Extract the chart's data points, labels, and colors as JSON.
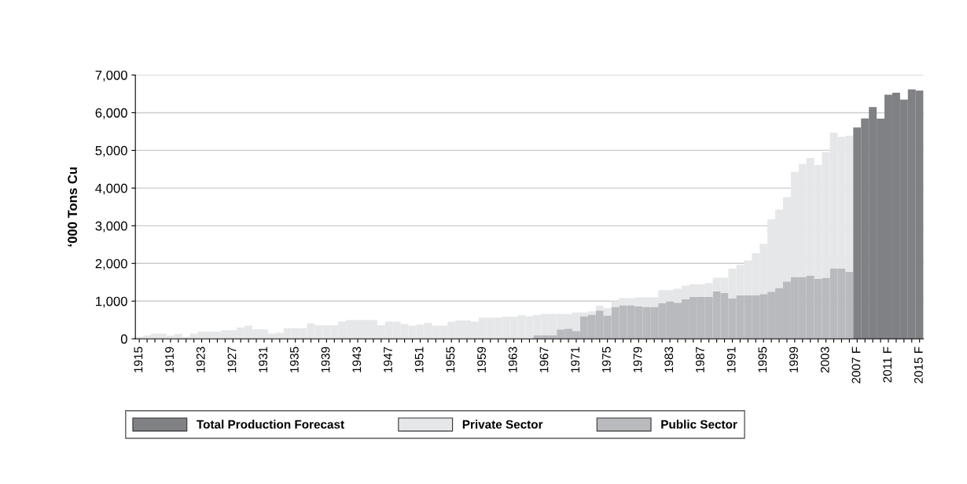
{
  "chart_data": {
    "type": "bar",
    "stacked": true,
    "ylabel": "‘000 Tons Cu",
    "categories": [
      "1915",
      null,
      null,
      null,
      "1919",
      null,
      null,
      null,
      "1923",
      null,
      null,
      null,
      "1927",
      null,
      null,
      null,
      "1931",
      null,
      null,
      null,
      "1935",
      null,
      null,
      null,
      "1939",
      null,
      null,
      null,
      "1943",
      null,
      null,
      null,
      "1947",
      null,
      null,
      null,
      "1951",
      null,
      null,
      null,
      "1955",
      null,
      null,
      null,
      "1959",
      null,
      null,
      null,
      "1963",
      null,
      null,
      null,
      "1967",
      null,
      null,
      null,
      "1971",
      null,
      null,
      null,
      "1975",
      null,
      null,
      null,
      "1979",
      null,
      null,
      null,
      "1983",
      null,
      null,
      null,
      "1987",
      null,
      null,
      null,
      "1991",
      null,
      null,
      null,
      "1995",
      null,
      null,
      null,
      "1999",
      null,
      null,
      null,
      "2003",
      null,
      null,
      null,
      "2007 F",
      null,
      null,
      null,
      "2011 F",
      null,
      null,
      null,
      "2015 F"
    ],
    "series": [
      {
        "name": "Public Sector",
        "color": "#b9babe",
        "values": [
          null,
          null,
          null,
          null,
          null,
          null,
          null,
          null,
          null,
          null,
          null,
          null,
          null,
          null,
          null,
          null,
          null,
          null,
          null,
          null,
          null,
          null,
          null,
          null,
          null,
          null,
          null,
          null,
          null,
          null,
          null,
          null,
          null,
          null,
          null,
          null,
          null,
          null,
          null,
          null,
          null,
          null,
          null,
          null,
          null,
          null,
          null,
          null,
          null,
          null,
          null,
          100,
          100,
          100,
          250,
          270,
          210,
          600,
          640,
          750,
          620,
          840,
          890,
          890,
          860,
          850,
          850,
          950,
          990,
          960,
          1050,
          1110,
          1110,
          1110,
          1260,
          1220,
          1080,
          1150,
          1150,
          1150,
          1190,
          1250,
          1350,
          1520,
          1640,
          1640,
          1670,
          1590,
          1620,
          1870,
          1870,
          1780,
          null,
          null,
          null,
          null,
          null,
          null,
          null,
          null,
          null
        ]
      },
      {
        "name": "Private Sector",
        "color": "#e6e7e9",
        "values": [
          50,
          90,
          140,
          140,
          90,
          130,
          50,
          140,
          190,
          190,
          190,
          230,
          230,
          300,
          350,
          250,
          250,
          140,
          160,
          280,
          280,
          280,
          410,
          360,
          360,
          360,
          460,
          500,
          500,
          500,
          500,
          360,
          460,
          450,
          390,
          350,
          380,
          420,
          350,
          350,
          450,
          490,
          490,
          450,
          560,
          560,
          560,
          590,
          590,
          630,
          600,
          530,
          560,
          560,
          410,
          390,
          490,
          100,
          90,
          130,
          190,
          160,
          190,
          190,
          240,
          250,
          250,
          340,
          300,
          370,
          360,
          340,
          340,
          370,
          360,
          400,
          780,
          810,
          930,
          1120,
          1330,
          1920,
          2080,
          2240,
          2790,
          3000,
          3130,
          3020,
          3330,
          3600,
          3490,
          3610,
          null,
          null,
          null,
          null,
          null,
          null,
          null,
          null,
          null
        ]
      },
      {
        "name": "Total Production Forecast",
        "color": "#808185",
        "values": [
          null,
          null,
          null,
          null,
          null,
          null,
          null,
          null,
          null,
          null,
          null,
          null,
          null,
          null,
          null,
          null,
          null,
          null,
          null,
          null,
          null,
          null,
          null,
          null,
          null,
          null,
          null,
          null,
          null,
          null,
          null,
          null,
          null,
          null,
          null,
          null,
          null,
          null,
          null,
          null,
          null,
          null,
          null,
          null,
          null,
          null,
          null,
          null,
          null,
          null,
          null,
          null,
          null,
          null,
          null,
          null,
          null,
          null,
          null,
          null,
          null,
          null,
          null,
          null,
          null,
          null,
          null,
          null,
          null,
          null,
          null,
          null,
          null,
          null,
          null,
          null,
          null,
          null,
          null,
          null,
          null,
          null,
          null,
          null,
          null,
          null,
          null,
          null,
          null,
          null,
          null,
          null,
          5610,
          5850,
          6150,
          5840,
          6480,
          6530,
          6350,
          6620,
          6590
        ]
      }
    ],
    "ylim": [
      0,
      7000
    ],
    "yticks": [
      0,
      {
        "value": 1000,
        "label": "1,000"
      },
      {
        "value": 2000,
        "label": "2,000"
      },
      {
        "value": 3000,
        "label": "3,000"
      },
      {
        "value": 4000,
        "label": "4,000"
      },
      {
        "value": 5000,
        "label": "5,000"
      },
      {
        "value": 6000,
        "label": "6,000"
      },
      {
        "value": 7000,
        "label": "7,000"
      }
    ],
    "grid": "y",
    "legend": "bottom"
  }
}
